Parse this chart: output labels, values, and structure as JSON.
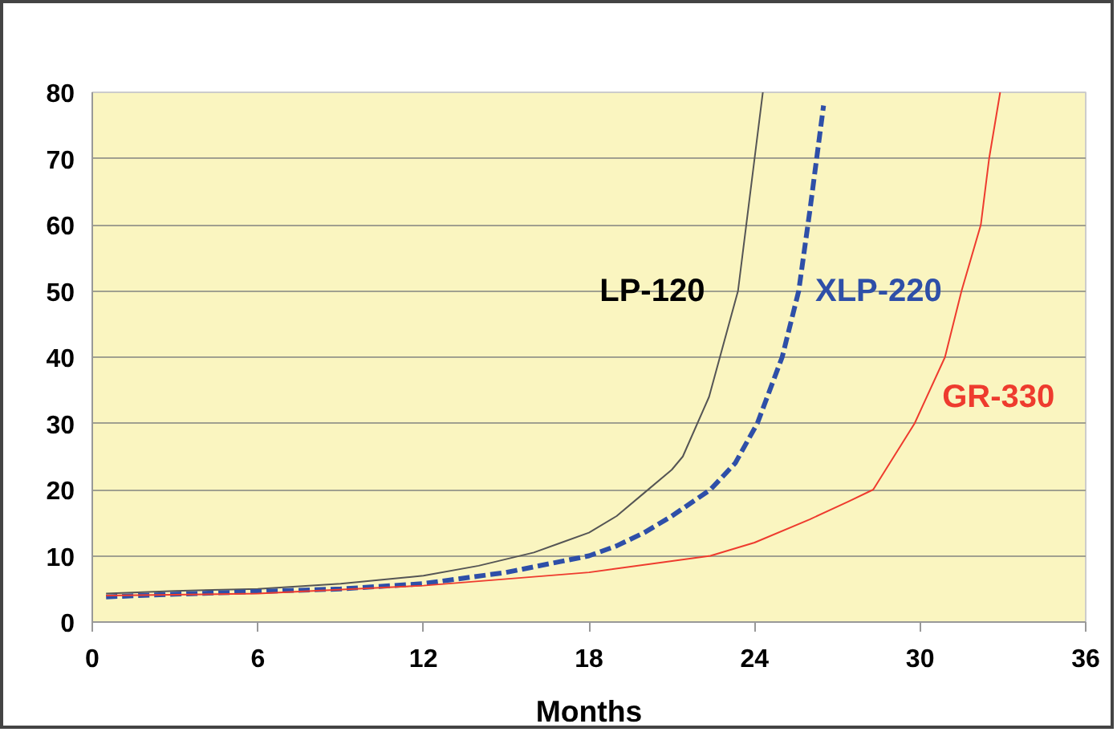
{
  "chart_data": {
    "type": "line",
    "xlabel": "Months",
    "xlim": [
      0,
      36
    ],
    "ylim": [
      0,
      80
    ],
    "xticks": [
      0,
      6,
      12,
      18,
      24,
      30,
      36
    ],
    "yticks": [
      0,
      10,
      20,
      30,
      40,
      50,
      60,
      70,
      80
    ],
    "grid": "y",
    "marker": "none",
    "series": [
      {
        "name": "LP-120",
        "color": "#555555",
        "line_style": "solid",
        "x": [
          0.5,
          3,
          6,
          9,
          12,
          14,
          16,
          17,
          18,
          19,
          20,
          21,
          21.4,
          22.35,
          23.4,
          24.0,
          24.3
        ],
        "values": [
          4.3,
          4.7,
          5.0,
          5.8,
          7.0,
          8.5,
          10.5,
          12,
          13.5,
          16,
          19.5,
          23,
          25,
          34,
          50,
          70,
          80
        ]
      },
      {
        "name": "XLP-220",
        "color": "#2e4fa8",
        "line_style": "dashed",
        "x": [
          0.5,
          3,
          6,
          9,
          12,
          15,
          18,
          19,
          20,
          21,
          22.4,
          23.3,
          24.1,
          25.0,
          25.6,
          26.0,
          26.5
        ],
        "values": [
          3.8,
          4.2,
          4.6,
          5.0,
          5.8,
          7.5,
          10,
          11.5,
          13.5,
          16,
          20,
          24,
          30,
          40,
          50,
          62,
          78
        ]
      },
      {
        "name": "GR-330",
        "color": "#ee3b2e",
        "line_style": "solid",
        "x": [
          0.5,
          6,
          12,
          18,
          22.4,
          24,
          26,
          27.4,
          28.3,
          29.8,
          30.9,
          31.5,
          32.2,
          32.5,
          32.9
        ],
        "values": [
          4.0,
          4.3,
          5.5,
          7.5,
          10,
          12,
          15.5,
          18.2,
          20,
          30,
          40,
          50,
          60,
          70,
          80
        ]
      }
    ]
  }
}
